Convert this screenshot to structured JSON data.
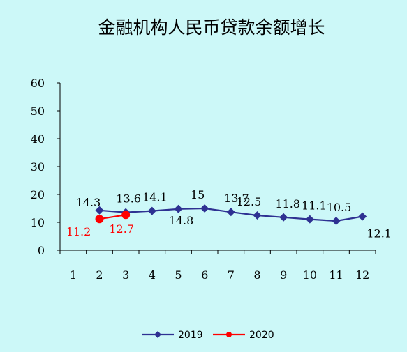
{
  "chart_data": {
    "type": "line",
    "title": "金融机构人民币贷款余额增长",
    "xlabel": "",
    "ylabel": "",
    "x": [
      "1",
      "2",
      "3",
      "4",
      "5",
      "6",
      "7",
      "8",
      "9",
      "10",
      "11",
      "12"
    ],
    "ylim": [
      0,
      60
    ],
    "yticks": [
      "0",
      "10",
      "20",
      "30",
      "40",
      "50",
      "60"
    ],
    "grid": false,
    "legend_position": "bottom",
    "series": [
      {
        "name": "2019",
        "color": "#2e3192",
        "marker": "diamond",
        "values": [
          null,
          14.3,
          13.6,
          14.1,
          14.8,
          15,
          13.7,
          12.5,
          11.8,
          11.1,
          10.5,
          12.1
        ],
        "labels": [
          "",
          "14.3",
          "13.6",
          "14.1",
          "14.8",
          "15",
          "13.7",
          "12.5",
          "11.8",
          "11.1",
          "10.5",
          "12.1"
        ]
      },
      {
        "name": "2020",
        "color": "#ff0000",
        "marker": "circle",
        "values": [
          null,
          11.2,
          12.7,
          null,
          null,
          null,
          null,
          null,
          null,
          null,
          null,
          null
        ],
        "labels": [
          "",
          "11.2",
          "12.7",
          "",
          "",
          "",
          "",
          "",
          "",
          "",
          "",
          ""
        ]
      }
    ]
  }
}
